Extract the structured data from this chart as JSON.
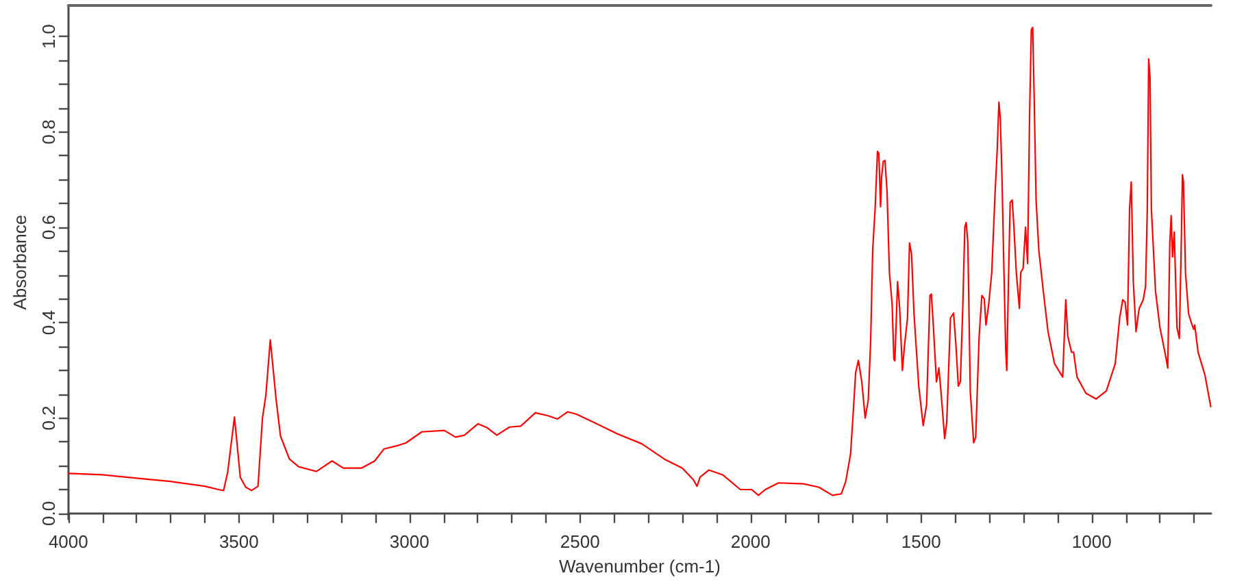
{
  "chart_data": {
    "type": "line",
    "xlabel": "Wavenumber (cm-1)",
    "ylabel": "Absorbance",
    "marker": "none",
    "xlim": [
      4000,
      650
    ],
    "xticks": [
      4000,
      {
        "value": 3900,
        "label": null
      },
      {
        "value": 3800,
        "label": null
      },
      {
        "value": 3700,
        "label": null
      },
      {
        "value": 3600,
        "label": null
      },
      3500,
      {
        "value": 3400,
        "label": null
      },
      {
        "value": 3300,
        "label": null
      },
      {
        "value": 3200,
        "label": null
      },
      {
        "value": 3100,
        "label": null
      },
      3000,
      {
        "value": 2900,
        "label": null
      },
      {
        "value": 2800,
        "label": null
      },
      {
        "value": 2700,
        "label": null
      },
      {
        "value": 2600,
        "label": null
      },
      2500,
      {
        "value": 2400,
        "label": null
      },
      {
        "value": 2300,
        "label": null
      },
      {
        "value": 2200,
        "label": null
      },
      {
        "value": 2100,
        "label": null
      },
      2000,
      {
        "value": 1900,
        "label": null
      },
      {
        "value": 1800,
        "label": null
      },
      {
        "value": 1700,
        "label": null
      },
      {
        "value": 1600,
        "label": null
      },
      1500,
      {
        "value": 1400,
        "label": null
      },
      {
        "value": 1300,
        "label": null
      },
      {
        "value": 1200,
        "label": null
      },
      {
        "value": 1100,
        "label": null
      },
      1000,
      {
        "value": 900,
        "label": null
      },
      {
        "value": 800,
        "label": null
      },
      {
        "value": 700,
        "label": null
      }
    ],
    "ylim": [
      -0.012,
      1.065
    ],
    "yticks": [
      {
        "value": 0,
        "label": "0.0"
      },
      {
        "value": 0.05,
        "label": null
      },
      {
        "value": 0.1,
        "label": null
      },
      {
        "value": 0.15,
        "label": null
      },
      0.2,
      {
        "value": 0.25,
        "label": null
      },
      {
        "value": 0.3,
        "label": null
      },
      {
        "value": 0.35,
        "label": null
      },
      0.4,
      {
        "value": 0.45,
        "label": null
      },
      {
        "value": 0.5,
        "label": null
      },
      {
        "value": 0.55,
        "label": null
      },
      0.6,
      {
        "value": 0.65,
        "label": null
      },
      {
        "value": 0.7,
        "label": null
      },
      {
        "value": 0.75,
        "label": null
      },
      0.8,
      {
        "value": 0.85,
        "label": null
      },
      {
        "value": 0.9,
        "label": null
      },
      {
        "value": 0.95,
        "label": null
      },
      {
        "value": 1,
        "label": "1.0"
      }
    ],
    "x": [
      4000,
      3900,
      3800,
      3700,
      3600,
      3560,
      3545,
      3533,
      3513,
      3496,
      3480,
      3463,
      3444,
      3431,
      3421,
      3408,
      3391,
      3378,
      3352,
      3325,
      3273,
      3227,
      3194,
      3141,
      3102,
      3075,
      3036,
      3010,
      2964,
      2898,
      2865,
      2839,
      2799,
      2773,
      2744,
      2707,
      2674,
      2631,
      2595,
      2566,
      2536,
      2510,
      2457,
      2391,
      2319,
      2253,
      2200,
      2168,
      2157,
      2148,
      2122,
      2082,
      2030,
      1997,
      1977,
      1957,
      1918,
      1845,
      1800,
      1760,
      1734,
      1721,
      1707,
      1701,
      1692,
      1684,
      1674,
      1664,
      1655,
      1648,
      1642,
      1635,
      1628,
      1624,
      1619,
      1616,
      1611,
      1606,
      1600,
      1593,
      1585,
      1580,
      1577,
      1569,
      1563,
      1555,
      1549,
      1540,
      1534,
      1528,
      1521,
      1507,
      1494,
      1484,
      1474,
      1470,
      1464,
      1455,
      1448,
      1442,
      1431,
      1425,
      1414,
      1405,
      1398,
      1391,
      1385,
      1378,
      1372,
      1368,
      1363,
      1356,
      1346,
      1340,
      1330,
      1322,
      1315,
      1310,
      1302,
      1293,
      1283,
      1277,
      1272,
      1268,
      1263,
      1258,
      1252,
      1249,
      1244,
      1239,
      1233,
      1228,
      1221,
      1212,
      1208,
      1201,
      1194,
      1188,
      1182,
      1177,
      1173,
      1169,
      1163,
      1155,
      1142,
      1128,
      1109,
      1085,
      1076,
      1070,
      1059,
      1053,
      1043,
      1017,
      987,
      957,
      931,
      918,
      909,
      902,
      895,
      889,
      884,
      878,
      870,
      861,
      849,
      842,
      837,
      833,
      829,
      825,
      813,
      800,
      784,
      777,
      771,
      767,
      763,
      758,
      750,
      743,
      737,
      734,
      731,
      725,
      716,
      708,
      701,
      698,
      688,
      668,
      651
    ],
    "series": [
      {
        "color": "#ff0000",
        "values": [
          0.084,
          0.081,
          0.074,
          0.067,
          0.057,
          0.05,
          0.048,
          0.086,
          0.202,
          0.076,
          0.055,
          0.048,
          0.057,
          0.2,
          0.248,
          0.364,
          0.239,
          0.162,
          0.114,
          0.098,
          0.088,
          0.11,
          0.095,
          0.095,
          0.11,
          0.135,
          0.142,
          0.148,
          0.171,
          0.174,
          0.16,
          0.164,
          0.188,
          0.18,
          0.164,
          0.181,
          0.183,
          0.211,
          0.205,
          0.198,
          0.213,
          0.208,
          0.19,
          0.167,
          0.146,
          0.114,
          0.095,
          0.071,
          0.057,
          0.076,
          0.091,
          0.081,
          0.05,
          0.05,
          0.038,
          0.05,
          0.064,
          0.062,
          0.055,
          0.038,
          0.041,
          0.067,
          0.124,
          0.19,
          0.295,
          0.321,
          0.276,
          0.2,
          0.238,
          0.362,
          0.553,
          0.638,
          0.759,
          0.755,
          0.643,
          0.705,
          0.738,
          0.74,
          0.676,
          0.505,
          0.438,
          0.324,
          0.32,
          0.486,
          0.43,
          0.3,
          0.35,
          0.41,
          0.567,
          0.543,
          0.42,
          0.267,
          0.184,
          0.228,
          0.457,
          0.46,
          0.39,
          0.276,
          0.305,
          0.257,
          0.157,
          0.19,
          0.41,
          0.42,
          0.353,
          0.267,
          0.276,
          0.43,
          0.6,
          0.61,
          0.567,
          0.257,
          0.148,
          0.16,
          0.371,
          0.457,
          0.45,
          0.395,
          0.438,
          0.505,
          0.676,
          0.762,
          0.862,
          0.829,
          0.705,
          0.533,
          0.343,
          0.3,
          0.486,
          0.652,
          0.657,
          0.6,
          0.505,
          0.43,
          0.505,
          0.514,
          0.6,
          0.524,
          0.838,
          1.014,
          1.019,
          0.886,
          0.657,
          0.552,
          0.467,
          0.381,
          0.314,
          0.286,
          0.448,
          0.371,
          0.338,
          0.338,
          0.286,
          0.252,
          0.24,
          0.257,
          0.314,
          0.41,
          0.448,
          0.443,
          0.395,
          0.638,
          0.695,
          0.486,
          0.381,
          0.429,
          0.448,
          0.476,
          0.638,
          0.953,
          0.914,
          0.638,
          0.467,
          0.39,
          0.333,
          0.305,
          0.567,
          0.624,
          0.538,
          0.59,
          0.39,
          0.367,
          0.581,
          0.71,
          0.695,
          0.505,
          0.419,
          0.4,
          0.386,
          0.395,
          0.338,
          0.29,
          0.224
        ]
      }
    ]
  }
}
